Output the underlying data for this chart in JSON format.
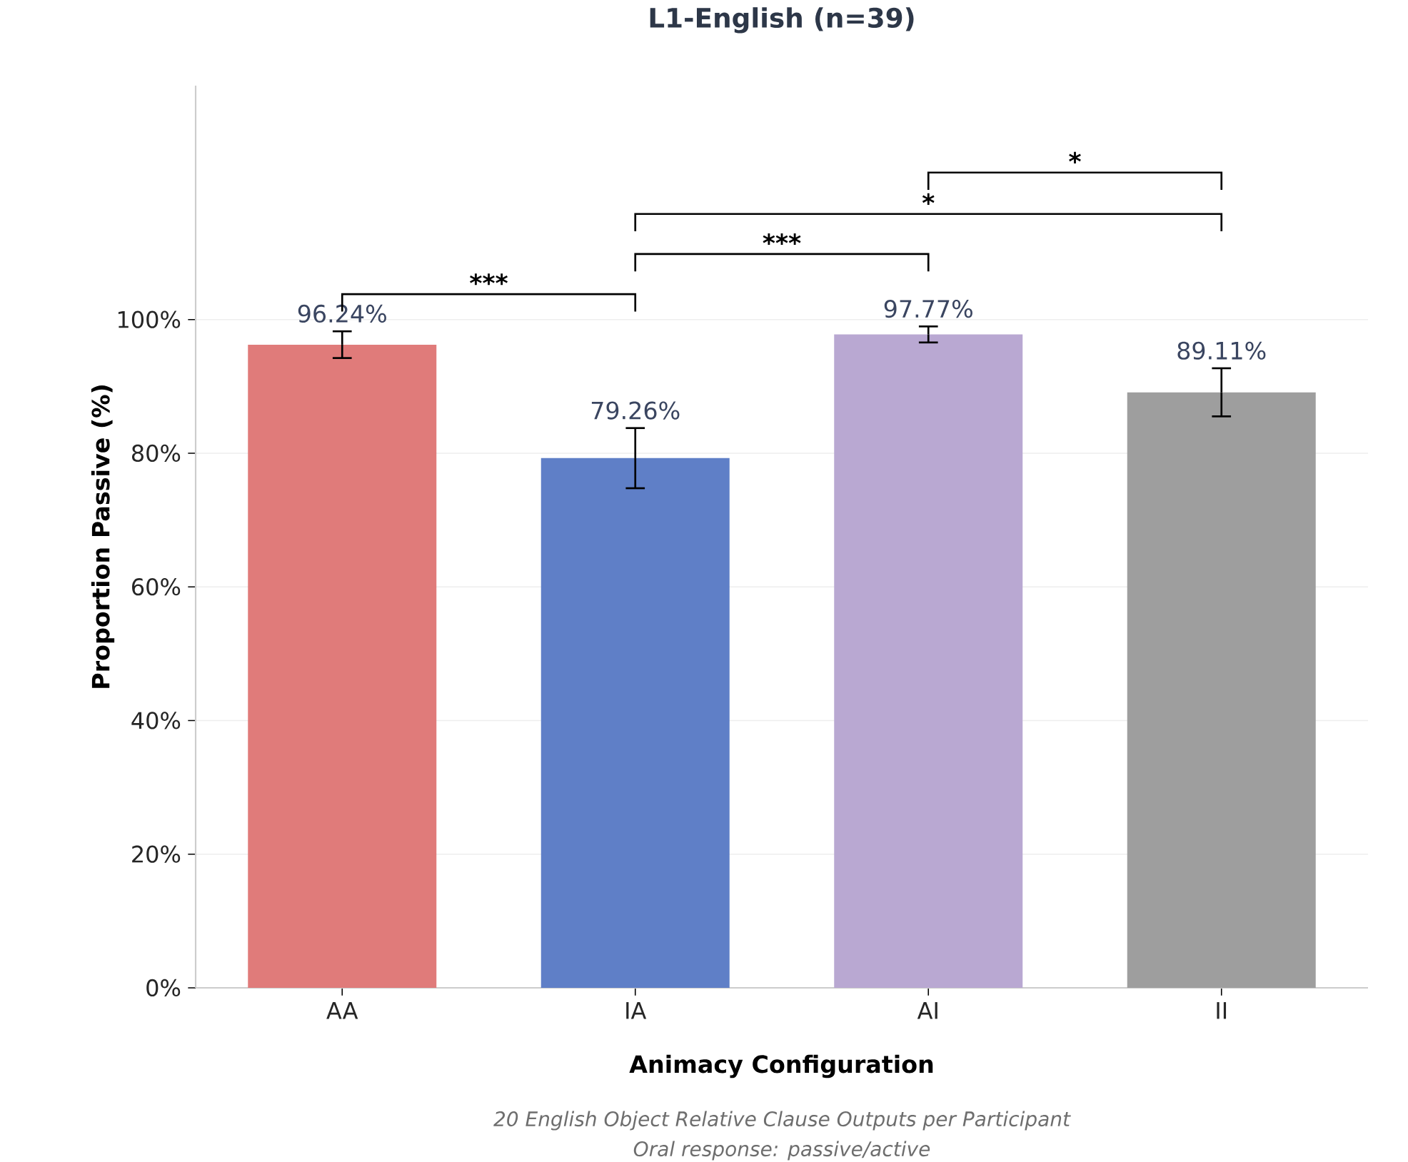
{
  "chart_data": {
    "type": "bar",
    "title": "L1-English (n=39)",
    "xlabel": "Animacy Configuration",
    "ylabel": "Proportion Passive (%)",
    "categories": [
      "AA",
      "IA",
      "AI",
      "II"
    ],
    "values": [
      96.24,
      79.26,
      97.77,
      89.11
    ],
    "colors": [
      "#e07b7a",
      "#5f7fc7",
      "#b9a8d2",
      "#9e9e9e"
    ],
    "errors": [
      2.0,
      4.5,
      1.2,
      3.6
    ],
    "value_labels": [
      "96.24%",
      "79.26%",
      "97.77%",
      "89.11%"
    ],
    "ylim": [
      0,
      135
    ],
    "yticks": [
      {
        "value": 0,
        "label": "0%"
      },
      {
        "value": 20,
        "label": "20%"
      },
      {
        "value": 40,
        "label": "40%"
      },
      {
        "value": 60,
        "label": "60%"
      },
      {
        "value": 80,
        "label": "80%"
      },
      {
        "value": 100,
        "label": "100%"
      }
    ],
    "grid": "y",
    "annotations": [
      "***",
      "***",
      "*",
      "*",
      "20 English Object Relative Clause Outputs per Participant",
      "Oral response: passive/active"
    ]
  }
}
